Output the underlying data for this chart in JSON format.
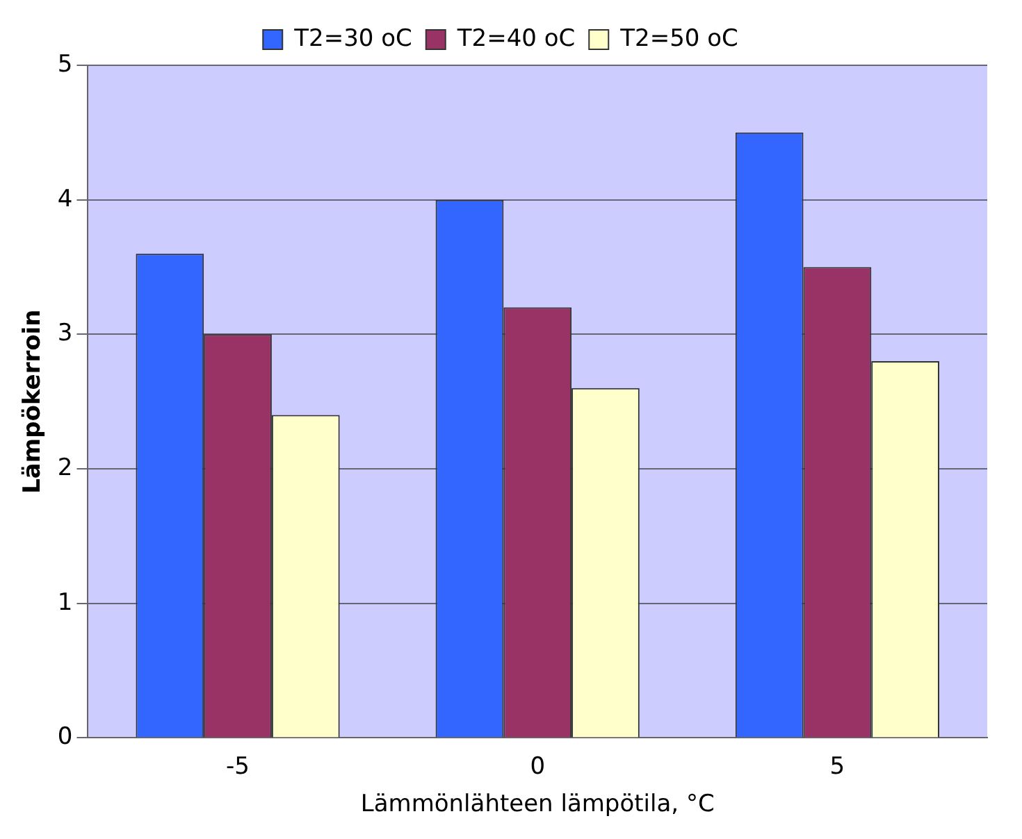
{
  "chart_data": {
    "type": "bar",
    "xlabel": "Lämmönlähteen lämpötila, °C",
    "ylabel": "Lämpökerroin",
    "categories": [
      "-5",
      "0",
      "5"
    ],
    "series": [
      {
        "name": "T2=30 oC",
        "color": "#3366ff",
        "values": [
          3.6,
          4.0,
          4.5
        ]
      },
      {
        "name": "T2=40 oC",
        "color": "#993366",
        "values": [
          3.0,
          3.2,
          3.5
        ]
      },
      {
        "name": "T2=50 oC",
        "color": "#ffffcc",
        "values": [
          2.4,
          2.6,
          2.8
        ]
      }
    ],
    "ylim": [
      0,
      5
    ],
    "yticks": [
      0,
      1,
      2,
      3,
      4,
      5
    ],
    "grid": "y",
    "legend": "top"
  }
}
